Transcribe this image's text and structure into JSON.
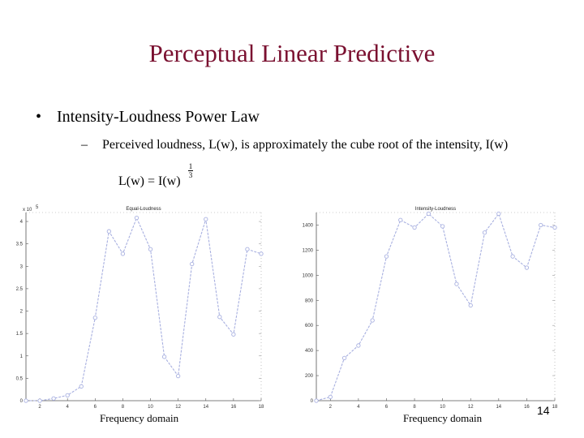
{
  "slide": {
    "title": "Perceptual Linear Predictive",
    "bullet": "Intensity-Loudness Power Law",
    "bullet_marker": "•",
    "sub_marker": "–",
    "sub_bullet": "Perceived loudness, L(w), is approximately the cube root of the intensity, I(w)",
    "formula": "L(w) = I(w)",
    "formula_exp_num": "1",
    "formula_exp_den": "3",
    "page_number": "14",
    "left_caption": "Frequency domain",
    "right_caption": "Frequency domain"
  },
  "chart_data": [
    {
      "type": "line",
      "title": "Equal-Loudness",
      "exponent_label": "x 10",
      "exponent_power": "5",
      "x": [
        1,
        2,
        3,
        4,
        5,
        6,
        7,
        8,
        9,
        10,
        11,
        12,
        13,
        14,
        15,
        16,
        17,
        18
      ],
      "series": [
        {
          "values": [
            0,
            0,
            0.05,
            0.12,
            0.32,
            1.85,
            3.78,
            3.28,
            4.08,
            3.38,
            0.98,
            0.55,
            3.05,
            4.05,
            1.87,
            1.48,
            3.38,
            3.28
          ]
        }
      ],
      "x_ticks": [
        "2",
        "4",
        "6",
        "8",
        "10",
        "12",
        "14",
        "16",
        "18"
      ],
      "y_ticks": [
        "0",
        "0.5",
        "1",
        "1.5",
        "2",
        "2.5",
        "3",
        "3.5",
        "4"
      ],
      "xlim": [
        1,
        18
      ],
      "ylim": [
        0,
        4.2
      ],
      "line_color": "#a8b0e0"
    },
    {
      "type": "line",
      "title": "Intensity-Loudness",
      "x": [
        1,
        2,
        3,
        4,
        5,
        6,
        7,
        8,
        9,
        10,
        11,
        12,
        13,
        14,
        15,
        16,
        17,
        18
      ],
      "series": [
        {
          "values": [
            0,
            30,
            340,
            440,
            640,
            1150,
            1440,
            1380,
            1490,
            1390,
            930,
            760,
            1340,
            1490,
            1150,
            1060,
            1400,
            1380
          ]
        }
      ],
      "x_ticks": [
        "2",
        "4",
        "6",
        "8",
        "10",
        "12",
        "14",
        "16",
        "18"
      ],
      "y_ticks": [
        "0",
        "200",
        "400",
        "600",
        "800",
        "1000",
        "1200",
        "1400"
      ],
      "xlim": [
        1,
        18
      ],
      "ylim": [
        0,
        1500
      ],
      "line_color": "#a8b0e0"
    }
  ]
}
